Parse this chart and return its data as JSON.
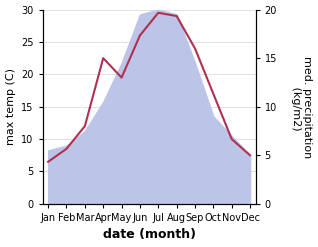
{
  "months": [
    "Jan",
    "Feb",
    "Mar",
    "Apr",
    "May",
    "Jun",
    "Jul",
    "Aug",
    "Sep",
    "Oct",
    "Nov",
    "Dec"
  ],
  "max_temp": [
    6.5,
    8.5,
    12.0,
    22.5,
    19.5,
    26.0,
    29.5,
    29.0,
    24.0,
    17.0,
    10.0,
    7.5
  ],
  "precipitation": [
    5.5,
    6.0,
    7.5,
    10.5,
    14.5,
    19.5,
    20.0,
    19.5,
    14.5,
    9.0,
    7.0,
    5.0
  ],
  "temp_color": "#b03050",
  "precip_fill_color": "#bcc5e8",
  "ylabel_left": "max temp (C)",
  "ylabel_right": "med. precipitation\n (kg/m2)",
  "xlabel": "date (month)",
  "ylim_left": [
    0,
    30
  ],
  "ylim_right": [
    0,
    20
  ],
  "left_ticks": [
    0,
    5,
    10,
    15,
    20,
    25,
    30
  ],
  "right_ticks": [
    0,
    5,
    10,
    15,
    20
  ],
  "background_color": "#ffffff",
  "label_fontsize": 8,
  "tick_fontsize": 7,
  "xlabel_fontsize": 9
}
